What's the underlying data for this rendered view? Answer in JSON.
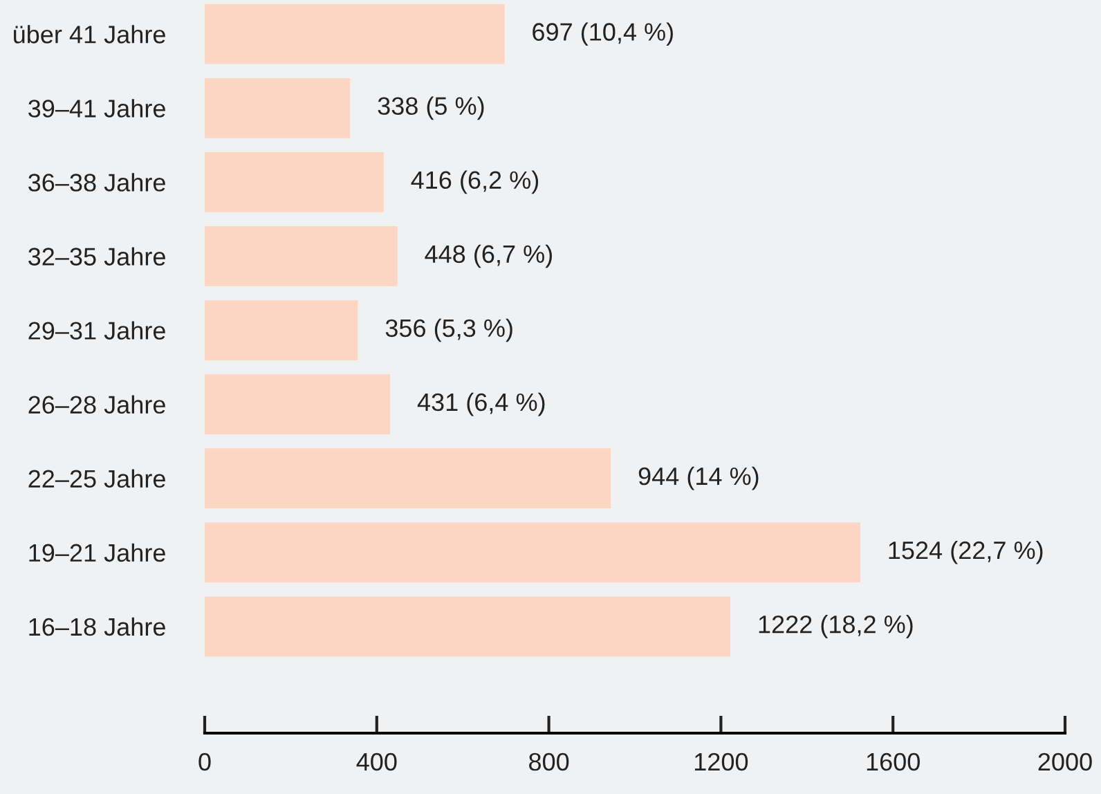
{
  "chart_data": {
    "type": "bar",
    "orientation": "horizontal",
    "categories": [
      "über 41 Jahre",
      "39–41 Jahre",
      "36–38 Jahre",
      "32–35 Jahre",
      "29–31 Jahre",
      "26–28 Jahre",
      "22–25 Jahre",
      "19–21 Jahre",
      "16–18 Jahre"
    ],
    "values": [
      697,
      338,
      416,
      448,
      356,
      431,
      944,
      1524,
      1222
    ],
    "value_labels": [
      "697 (10,4 %)",
      "338 (5 %)",
      "416 (6,2 %)",
      "448 (6,7 %)",
      "356 (5,3 %)",
      "431 (6,4 %)",
      "944 (14 %)",
      "1524 (22,7 %)",
      "1222 (18,2 %)"
    ],
    "color": "#fdd5c3",
    "xlim": [
      0,
      2000
    ],
    "xticks": [
      0,
      400,
      800,
      1200,
      1600,
      2000
    ],
    "grid": false,
    "legend": false
  }
}
